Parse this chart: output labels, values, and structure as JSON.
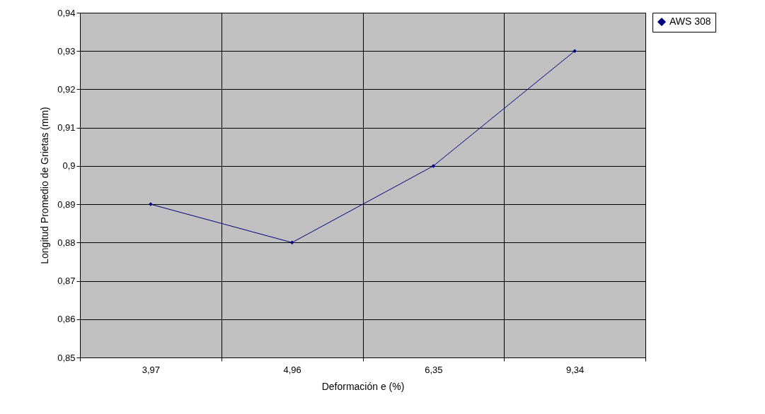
{
  "chart_data": {
    "type": "line",
    "xlabel": "Deformación e (%)",
    "ylabel": "Longitud Promedio de Grietas (mm)",
    "categories": [
      "3,97",
      "4,96",
      "6,35",
      "9,34"
    ],
    "series": [
      {
        "name": "AWS 308",
        "color": "#000080",
        "values": [
          0.89,
          0.88,
          0.9,
          0.93
        ]
      }
    ],
    "ylim": [
      0.85,
      0.94
    ],
    "yticks": [
      {
        "value": 0.85,
        "label": "0,85"
      },
      {
        "value": 0.86,
        "label": "0,86"
      },
      {
        "value": 0.87,
        "label": "0,87"
      },
      {
        "value": 0.88,
        "label": "0,88"
      },
      {
        "value": 0.89,
        "label": "0,89"
      },
      {
        "value": 0.9,
        "label": "0,9"
      },
      {
        "value": 0.91,
        "label": "0,91"
      },
      {
        "value": 0.92,
        "label": "0,92"
      },
      {
        "value": 0.93,
        "label": "0,93"
      },
      {
        "value": 0.94,
        "label": "0,94"
      }
    ],
    "grid": true,
    "legend": "right",
    "marker": "diamond",
    "line_style": "solid"
  }
}
